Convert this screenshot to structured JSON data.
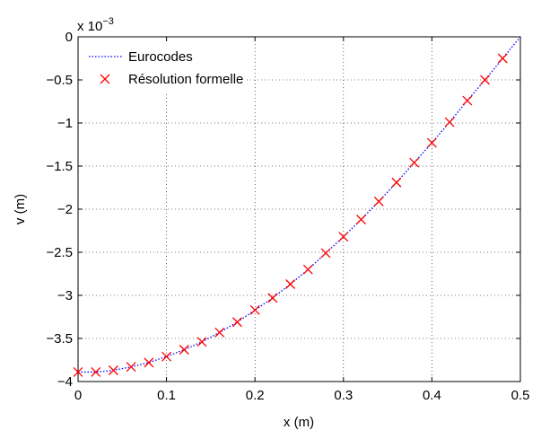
{
  "chart_data": {
    "type": "line",
    "xlabel": "x (m)",
    "ylabel": "v (m)",
    "y_multiplier": {
      "base": "x 10",
      "exponent": "−3"
    },
    "xlim": [
      0,
      0.5
    ],
    "xticks": [
      0,
      0.1,
      0.2,
      0.3,
      0.4,
      0.5
    ],
    "ylim": [
      -4,
      0
    ],
    "yticks": [
      {
        "value": -4,
        "label": "−4"
      },
      {
        "value": -3.5,
        "label": "−3.5"
      },
      {
        "value": -3,
        "label": "−3"
      },
      {
        "value": -2.5,
        "label": "−2.5"
      },
      {
        "value": -2,
        "label": "−2"
      },
      {
        "value": -1.5,
        "label": "−1.5"
      },
      {
        "value": -1,
        "label": "−1"
      },
      {
        "value": -0.5,
        "label": "−0.5"
      },
      0
    ],
    "grid": true,
    "legend": "upper left",
    "series": [
      {
        "name": "Eurocodes",
        "color": "#0000ff",
        "style": "dotted",
        "x": [
          0,
          0.02,
          0.04,
          0.06,
          0.08,
          0.1,
          0.12,
          0.14,
          0.16,
          0.18,
          0.2,
          0.22,
          0.24,
          0.26,
          0.28,
          0.3,
          0.32,
          0.34,
          0.36,
          0.38,
          0.4,
          0.42,
          0.44,
          0.46,
          0.48,
          0.5
        ],
        "values": [
          -3.89,
          -3.89,
          -3.87,
          -3.83,
          -3.78,
          -3.71,
          -3.63,
          -3.54,
          -3.43,
          -3.31,
          -3.17,
          -3.03,
          -2.87,
          -2.7,
          -2.51,
          -2.32,
          -2.12,
          -1.91,
          -1.69,
          -1.46,
          -1.23,
          -0.99,
          -0.74,
          -0.5,
          -0.25,
          0
        ]
      },
      {
        "name": "Résolution formelle",
        "color": "#ff0000",
        "marker": "x",
        "x": [
          0,
          0.02,
          0.04,
          0.06,
          0.08,
          0.1,
          0.12,
          0.14,
          0.16,
          0.18,
          0.2,
          0.22,
          0.24,
          0.26,
          0.28,
          0.3,
          0.32,
          0.34,
          0.36,
          0.38,
          0.4,
          0.42,
          0.44,
          0.46,
          0.48
        ],
        "values": [
          -3.89,
          -3.89,
          -3.87,
          -3.83,
          -3.78,
          -3.71,
          -3.63,
          -3.54,
          -3.43,
          -3.31,
          -3.17,
          -3.03,
          -2.87,
          -2.7,
          -2.51,
          -2.32,
          -2.12,
          -1.91,
          -1.69,
          -1.46,
          -1.23,
          -0.99,
          -0.74,
          -0.5,
          -0.25
        ]
      }
    ]
  }
}
